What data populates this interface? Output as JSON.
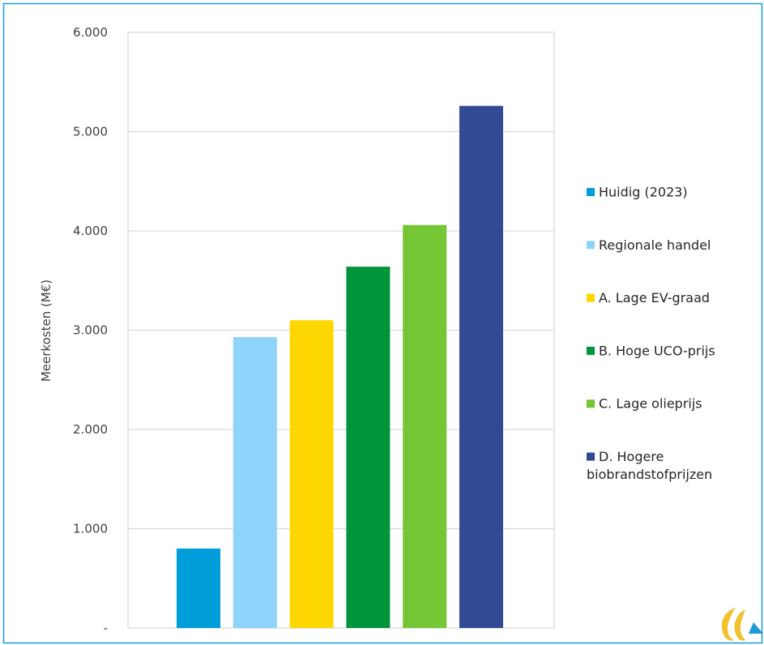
{
  "chart_data": {
    "type": "bar",
    "title": "",
    "xlabel": "",
    "ylabel": "Meerkosten (M€)",
    "ylim": [
      0,
      6000
    ],
    "yticks": [
      0,
      1000,
      2000,
      3000,
      4000,
      5000,
      6000
    ],
    "ytick_labels": [
      "-",
      "1.000",
      "2.000",
      "3.000",
      "4.000",
      "5.000",
      "6.000"
    ],
    "grid": true,
    "legend_position": "right",
    "series": [
      {
        "name": "Huidig (2023)",
        "value": 800,
        "color": "#009DDB"
      },
      {
        "name": "Regionale handel",
        "value": 2930,
        "color": "#8ED3F9"
      },
      {
        "name": "A. Lage EV-graad",
        "value": 3100,
        "color": "#FFD700"
      },
      {
        "name": "B. Hoge UCO-prijs",
        "value": 3640,
        "color": "#00953A"
      },
      {
        "name": "C. Lage olieprijs",
        "value": 4060,
        "color": "#74C634"
      },
      {
        "name": "D. Hogere biobrandstofprijzen",
        "value": 5260,
        "color": "#324A93"
      }
    ]
  },
  "colors": {
    "frame": "#1B9AD6",
    "grid": "#D9D9D9",
    "logo_yellow": "#F2C12E",
    "logo_blue": "#1B9AD6"
  },
  "logo": {
    "icon": "brand-logo-icon"
  }
}
